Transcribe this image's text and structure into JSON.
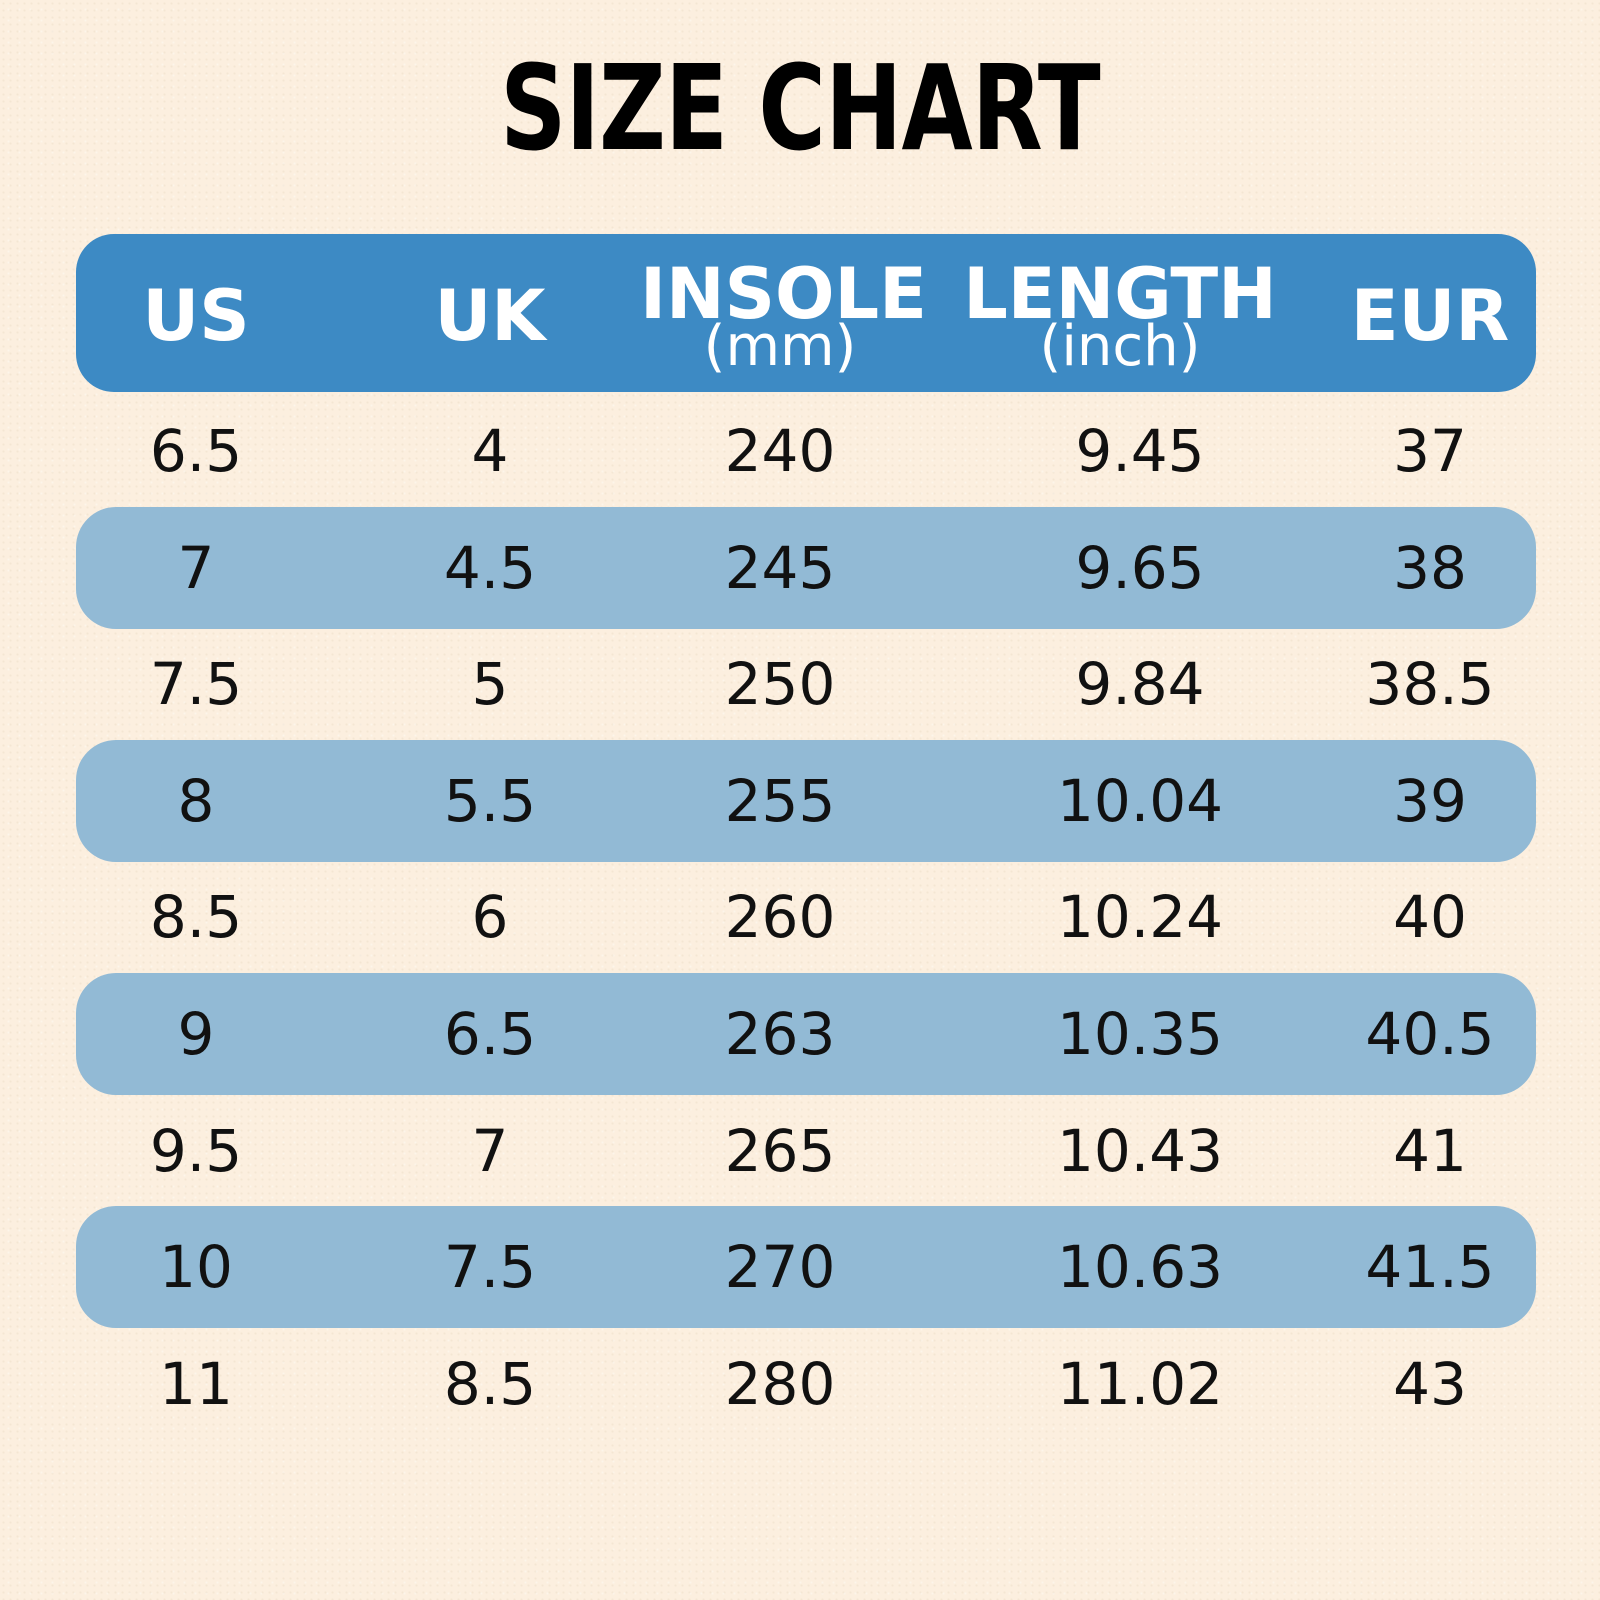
{
  "title": "SIZE CHART",
  "colors": {
    "header": "#3d8ac4",
    "stripe": "#92bad5",
    "text": "#111111",
    "background": "#fcefdf"
  },
  "header": {
    "us": "US",
    "uk": "UK",
    "insole": "INSOLE",
    "insole_unit": "(mm)",
    "length": "LENGTH",
    "length_unit": "(inch)",
    "eur": "EUR"
  },
  "chart_data": {
    "type": "table",
    "title": "SIZE CHART",
    "columns": [
      "US",
      "UK",
      "INSOLE (mm)",
      "LENGTH (inch)",
      "EUR"
    ],
    "rows": [
      {
        "us": "6.5",
        "uk": "4",
        "mm": "240",
        "inch": "9.45",
        "eur": "37"
      },
      {
        "us": "7",
        "uk": "4.5",
        "mm": "245",
        "inch": "9.65",
        "eur": "38"
      },
      {
        "us": "7.5",
        "uk": "5",
        "mm": "250",
        "inch": "9.84",
        "eur": "38.5"
      },
      {
        "us": "8",
        "uk": "5.5",
        "mm": "255",
        "inch": "10.04",
        "eur": "39"
      },
      {
        "us": "8.5",
        "uk": "6",
        "mm": "260",
        "inch": "10.24",
        "eur": "40"
      },
      {
        "us": "9",
        "uk": "6.5",
        "mm": "263",
        "inch": "10.35",
        "eur": "40.5"
      },
      {
        "us": "9.5",
        "uk": "7",
        "mm": "265",
        "inch": "10.43",
        "eur": "41"
      },
      {
        "us": "10",
        "uk": "7.5",
        "mm": "270",
        "inch": "10.63",
        "eur": "41.5"
      },
      {
        "us": "11",
        "uk": "8.5",
        "mm": "280",
        "inch": "11.02",
        "eur": "43"
      }
    ]
  }
}
